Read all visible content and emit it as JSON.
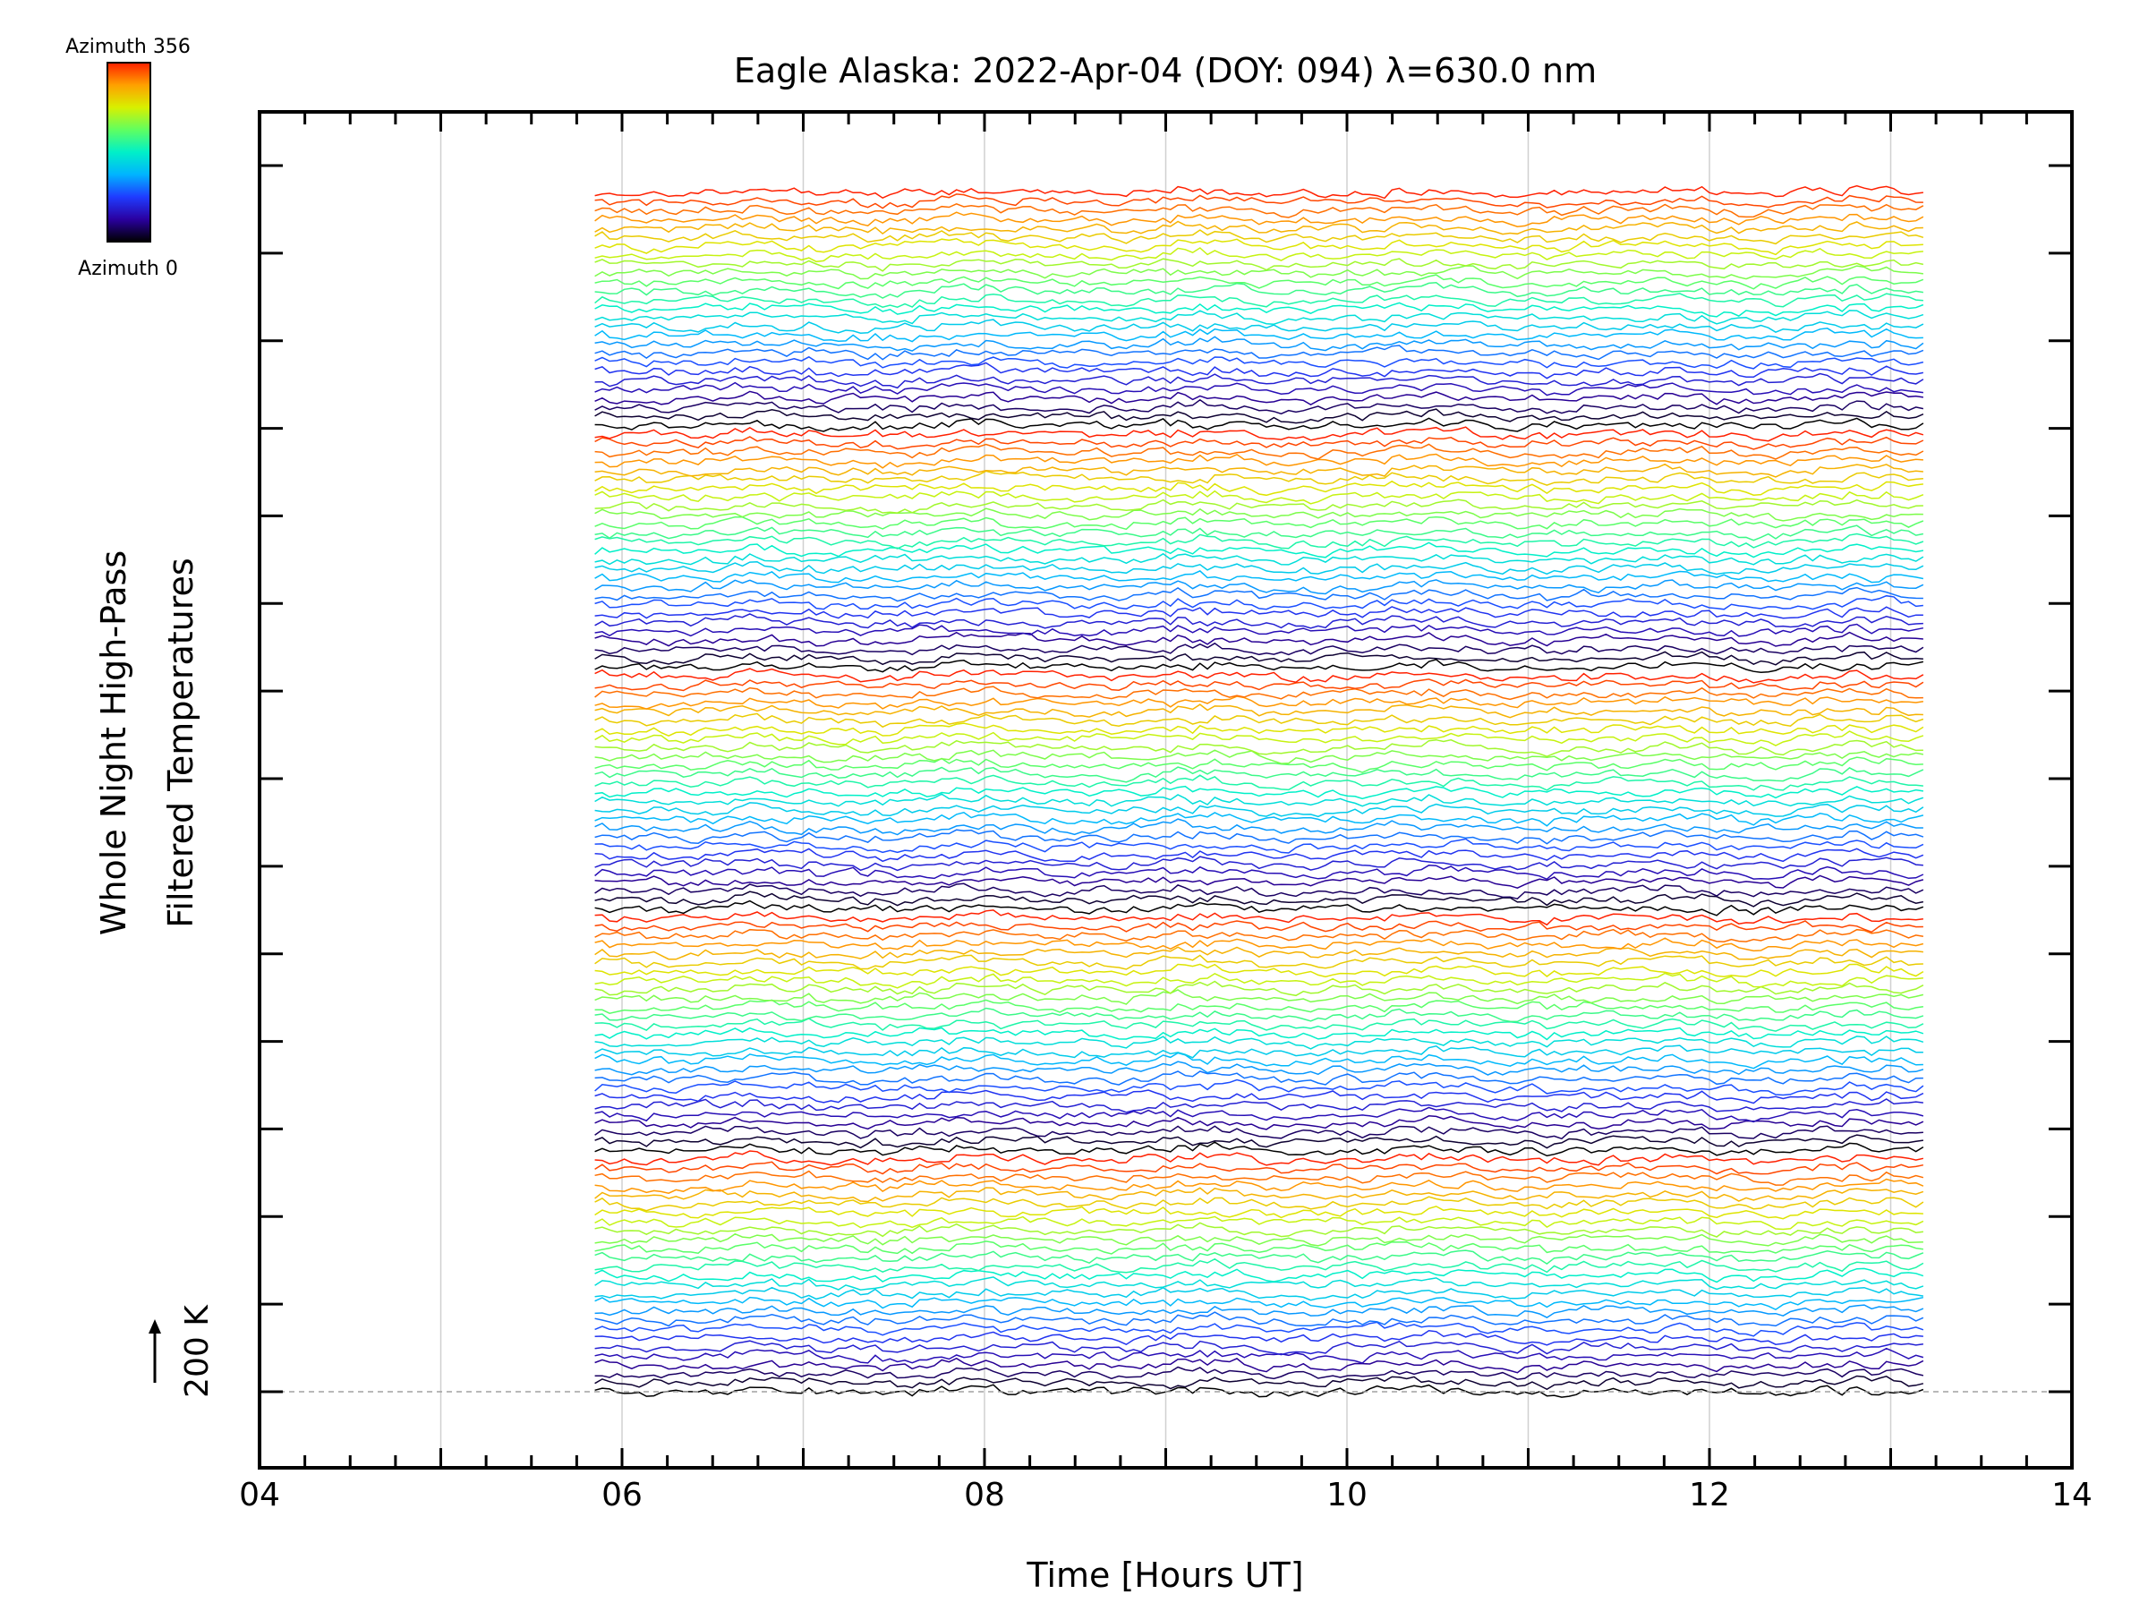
{
  "chart_data": {
    "type": "line",
    "title": "Eagle Alaska: 2022-Apr-04 (DOY: 094) λ=630.0 nm",
    "xlabel": "Time [Hours UT]",
    "ylabel_line1": "Whole Night High-Pass",
    "ylabel_line2": "Filtered Temperatures",
    "xlim": [
      4,
      14
    ],
    "x_ticks": [
      {
        "value": 4,
        "label": "04"
      },
      {
        "value": 6,
        "label": "06"
      },
      {
        "value": 8,
        "label": "08"
      },
      {
        "value": 10,
        "label": "10"
      },
      {
        "value": 12,
        "label": "12"
      },
      {
        "value": 14,
        "label": "14"
      }
    ],
    "x_minor_step": 0.25,
    "x_gridlines": [
      5,
      6,
      7,
      8,
      9,
      10,
      11,
      12,
      13
    ],
    "scale_bar": {
      "label": "200 K",
      "value_K": 200
    },
    "data_time_range": [
      5.85,
      13.18
    ],
    "series_count": 135,
    "y_major_ticks": 15,
    "colorbar": {
      "top_label": "Azimuth 356",
      "bottom_label": "Azimuth 0",
      "azimuth_min": 0,
      "azimuth_max": 356,
      "colormap": [
        "#000000",
        "#2a00a0",
        "#1f3cff",
        "#00b4ff",
        "#00f0c8",
        "#60ff60",
        "#d8f000",
        "#ffa000",
        "#ff2000"
      ]
    },
    "colors": {
      "axis": "#000000",
      "gridline": "#d0d0d0",
      "baseline": "#a0a0a0"
    }
  }
}
